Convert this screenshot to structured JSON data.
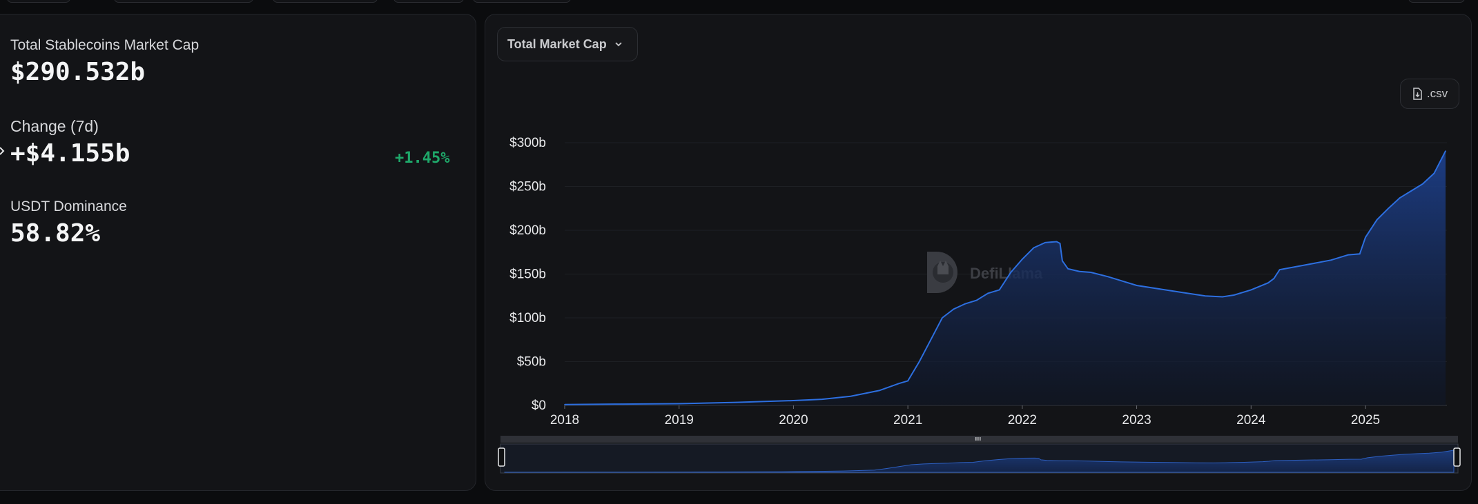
{
  "stats": {
    "total": {
      "label": "Total Stablecoins Market Cap",
      "value": "$290.532b"
    },
    "change": {
      "label": "Change (7d)",
      "value": "+$4.155b",
      "percent": "+1.45%"
    },
    "dominance": {
      "label": "USDT Dominance",
      "value": "58.82%"
    }
  },
  "controls": {
    "chart_selector": "Total Market Cap",
    "csv_label": ".csv"
  },
  "watermark": {
    "text": "DefiLlama"
  },
  "colors": {
    "line": "#2d6fe0",
    "area_top": "#1d3f8a",
    "area_bottom": "#0f1626",
    "positive": "#1fa86a"
  },
  "chart_data": {
    "type": "area",
    "title": "",
    "xlabel": "",
    "ylabel": "",
    "x_ticks": [
      "2018",
      "2019",
      "2020",
      "2021",
      "2022",
      "2023",
      "2024",
      "2025"
    ],
    "y_ticks": [
      "$0",
      "$50b",
      "$100b",
      "$150b",
      "$200b",
      "$250b",
      "$300b"
    ],
    "xlim": [
      2018.0,
      2025.7
    ],
    "ylim": [
      0,
      300
    ],
    "grid": true,
    "series": [
      {
        "x": [
          2018.0,
          2018.5,
          2019.0,
          2019.5,
          2019.75,
          2020.0,
          2020.25,
          2020.5,
          2020.75,
          2020.92,
          2021.0,
          2021.1,
          2021.2,
          2021.3,
          2021.4,
          2021.5,
          2021.6,
          2021.7,
          2021.8,
          2021.9,
          2022.0,
          2022.1,
          2022.2,
          2022.3,
          2022.33,
          2022.35,
          2022.4,
          2022.5,
          2022.6,
          2022.75,
          2022.9,
          2023.0,
          2023.2,
          2023.4,
          2023.6,
          2023.75,
          2023.85,
          2024.0,
          2024.15,
          2024.2,
          2024.25,
          2024.5,
          2024.7,
          2024.85,
          2024.95,
          2025.0,
          2025.1,
          2025.2,
          2025.3,
          2025.4,
          2025.5,
          2025.6,
          2025.7
        ],
        "values": [
          1.0,
          1.5,
          2.0,
          3.5,
          4.5,
          5.5,
          7.0,
          10.5,
          17.0,
          25.0,
          28.0,
          50.0,
          75.0,
          100.0,
          110.0,
          116.0,
          120.0,
          128.0,
          132.0,
          152.0,
          167.0,
          180.0,
          186.0,
          187.0,
          185.0,
          165.0,
          156.0,
          153.0,
          152.0,
          147.0,
          141.0,
          137.0,
          133.0,
          129.0,
          125.0,
          124.0,
          126.0,
          132.0,
          140.0,
          145.0,
          155.0,
          161.0,
          166.0,
          172.0,
          173.0,
          192.0,
          212.0,
          225.0,
          237.0,
          245.0,
          253.0,
          265.0,
          290.5
        ]
      }
    ],
    "legend": "none"
  }
}
